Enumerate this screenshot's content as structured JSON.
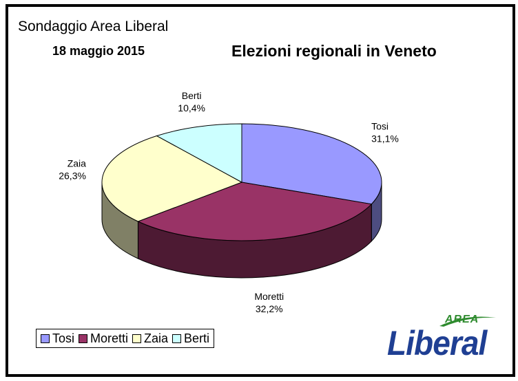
{
  "header": {
    "source": "Sondaggio Area Liberal",
    "date": "18 maggio 2015"
  },
  "logo": {
    "small": "AREA",
    "main": "Liberal"
  },
  "chart_data": {
    "type": "pie",
    "title": "Elezioni regionali in Veneto",
    "three_d": true,
    "legend_position": "bottom-left",
    "slices": [
      {
        "name": "Tosi",
        "value": 31.1,
        "label": "31,1%",
        "color": "#9999ff",
        "side_color": "#4d4d80"
      },
      {
        "name": "Moretti",
        "value": 32.2,
        "label": "32,2%",
        "color": "#993366",
        "side_color": "#4d1a33"
      },
      {
        "name": "Zaia",
        "value": 26.3,
        "label": "26,3%",
        "color": "#ffffcc",
        "side_color": "#808066"
      },
      {
        "name": "Berti",
        "value": 10.4,
        "label": "10,4%",
        "color": "#ccffff",
        "side_color": "#668080"
      }
    ]
  }
}
